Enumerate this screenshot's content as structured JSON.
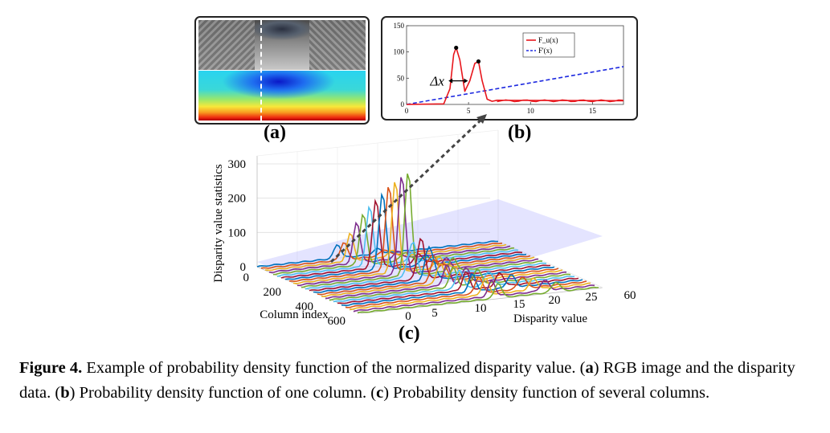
{
  "panel_a": {
    "label": "(a)",
    "image_description_icon": "rgb-image-and-disparity-map"
  },
  "panel_b": {
    "label": "(b)",
    "legend": [
      "F_u(x)",
      "F'(x)"
    ],
    "delta_label": "Δx",
    "x_ticks": [
      "0",
      "5",
      "10",
      "15"
    ],
    "y_ticks": [
      "0",
      "50",
      "100",
      "150"
    ],
    "colors": {
      "fu": "#e8161c",
      "fprime": "#1f2be0"
    }
  },
  "panel_c": {
    "label": "(c)",
    "z_label": "Disparity value statistics",
    "x_label": "Column index",
    "y_label": "Disparity value",
    "z_ticks": [
      "0",
      "100",
      "200",
      "300"
    ],
    "col_ticks": [
      "0",
      "200",
      "400",
      "600"
    ],
    "disp_ticks": [
      "0",
      "5",
      "10",
      "15",
      "20",
      "25",
      "60"
    ]
  },
  "chart_data": [
    {
      "type": "line",
      "title": "",
      "xlabel": "",
      "ylabel": "",
      "xlim": [
        0,
        17.5
      ],
      "ylim": [
        0,
        150
      ],
      "series": [
        {
          "name": "F_u(x)",
          "x": [
            0,
            3,
            3.5,
            3.8,
            4.0,
            4.3,
            4.7,
            5.1,
            5.5,
            5.8,
            6.1,
            6.5,
            6.9,
            7.3,
            17.5
          ],
          "y": [
            0,
            1,
            30,
            95,
            108,
            85,
            25,
            45,
            78,
            82,
            45,
            10,
            6,
            8,
            7
          ]
        },
        {
          "name": "F'(x)",
          "x": [
            0,
            17.5
          ],
          "y": [
            0,
            72
          ]
        }
      ]
    },
    {
      "type": "line",
      "title": "",
      "xlabel": "Column index",
      "ylabel": "Disparity value",
      "zlabel": "Disparity value statistics",
      "zlim": [
        0,
        300
      ]
    }
  ],
  "caption": {
    "figure": "Figure 4.",
    "text1": " Example of probability density function of the normalized disparity value. (",
    "a": "a",
    "text2": ") RGB image and the disparity data. (",
    "b": "b",
    "text3": ") Probability density function of one column. (",
    "c": "c",
    "text4": ") Probability density function of several columns."
  }
}
